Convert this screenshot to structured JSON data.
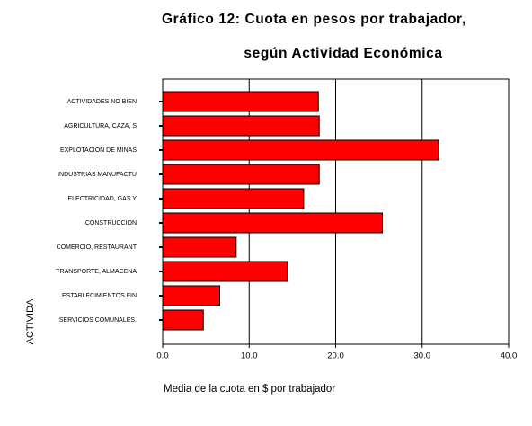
{
  "chart_data": {
    "type": "bar",
    "orientation": "horizontal",
    "title": "Gráfico 12: Cuota en pesos por trabajador,",
    "subtitle": "según Actividad Económica",
    "xlabel": "Media de la cuota en $ por trabajador",
    "ylabel": "ACTIVIDA",
    "categories": [
      "ACTIVIDADES NO BIEN",
      "AGRICULTURA, CAZA, S",
      "EXPLOTACION DE MINAS",
      "INDUSTRIAS MANUFACTU",
      "ELECTRICIDAD, GAS Y",
      "CONSTRUCCION",
      "COMERCIO, RESTAURANT",
      "TRANSPORTE, ALMACENA",
      "ESTABLECIMIENTOS FIN",
      "SERVICIOS COMUNALES."
    ],
    "values": [
      18.0,
      18.1,
      31.9,
      18.1,
      16.3,
      25.4,
      8.5,
      14.4,
      6.6,
      4.7
    ],
    "color": "#ff0000",
    "xlim": [
      0,
      40
    ],
    "xticks": [
      {
        "value": 0,
        "label": "0.0"
      },
      {
        "value": 10,
        "label": "10.0"
      },
      {
        "value": 20,
        "label": "20.0"
      },
      {
        "value": 30,
        "label": "30.0"
      },
      {
        "value": 40,
        "label": "40.0"
      }
    ],
    "grid": true
  }
}
